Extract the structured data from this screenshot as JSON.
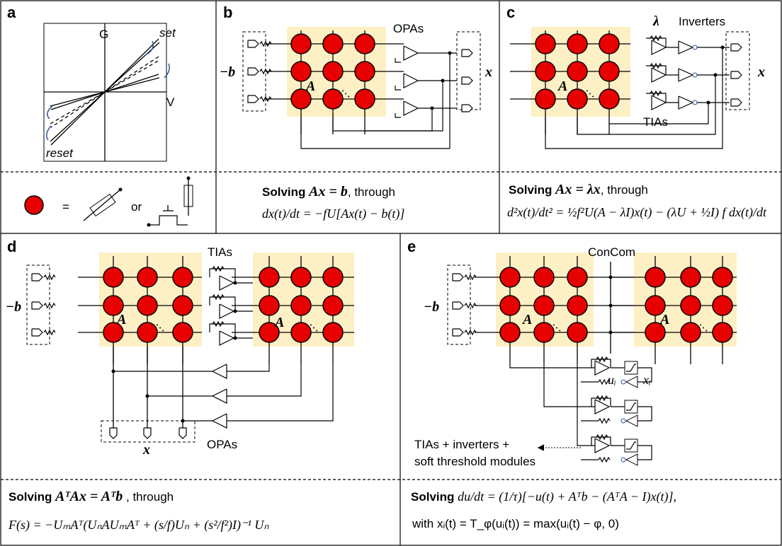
{
  "panel_a": {
    "label": "a",
    "y_axis": "G",
    "x_axis": "V",
    "set": "set",
    "reset": "reset",
    "equals": "=",
    "or": "or"
  },
  "panel_b": {
    "label": "b",
    "input": "−b",
    "output": "x",
    "matrix": "A",
    "amps": "OPAs",
    "caption": {
      "lead": "Solving",
      "formula": "Ax = b",
      "tail": ", through",
      "equation": "dx(t)/dt = −fU[Ax(t) − b(t)]"
    }
  },
  "panel_c": {
    "label": "c",
    "lambda": "λ",
    "inverters": "Inverters",
    "tias": "TIAs",
    "matrix": "A",
    "output": "x",
    "caption": {
      "lead": "Solving",
      "formula": "Ax = λx",
      "tail": ", through",
      "equation": "d²x(t)/dt² = ½f²U(A − λI)x(t) − (λU + ½I) f dx(t)/dt"
    }
  },
  "panel_d": {
    "label": "d",
    "tias": "TIAs",
    "input": "−b",
    "matrix_1": "A",
    "matrix_2": "A",
    "opas": "OPAs",
    "output": "x",
    "caption": {
      "lead": "Solving",
      "formula": "AᵀAx = Aᵀb",
      "tail": " , through",
      "equation": "F(s) = −UₘAᵀ(UₙAUₘAᵀ + (s/f)Uₙ + (s²/f²)I)⁻¹ Uₙ"
    }
  },
  "panel_e": {
    "label": "e",
    "concom": "ConCom",
    "input": "−b",
    "matrix_1": "A",
    "matrix_2": "A",
    "u_i": "uᵢ",
    "x_i": "xᵢ",
    "note_line1": "TIAs + inverters +",
    "note_line2": "soft threshold modules",
    "caption": {
      "lead": "Solving",
      "equation": "du/dt = (1/τ)[−u(t) + Aᵀb − (AᵀA − I)x(t)],",
      "line2": "with  xᵢ(t) = T_φ(uᵢ(t)) = max(uᵢ(t) − φ, 0)"
    }
  }
}
